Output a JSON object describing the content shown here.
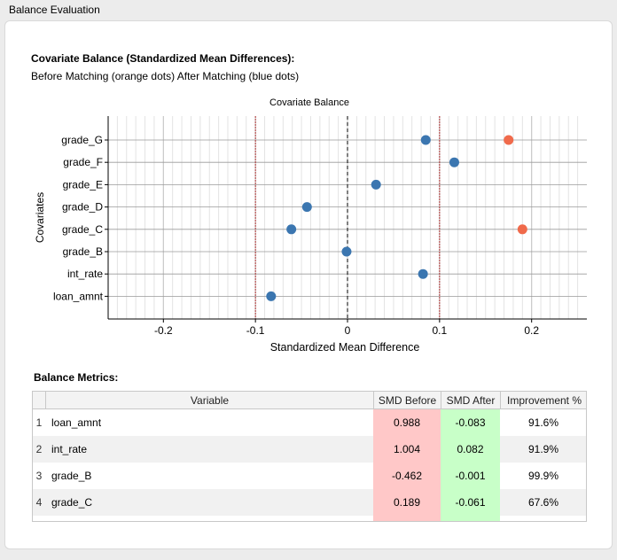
{
  "window": {
    "title": "Balance Evaluation"
  },
  "heading": "Covariate Balance (Standardized Mean Differences):",
  "subheading": "Before Matching (orange dots) After Matching (blue dots)",
  "chart_data": {
    "type": "scatter",
    "title": "Covariate Balance",
    "xlabel": "Standardized Mean Difference",
    "ylabel": "Covariates",
    "categories": [
      "grade_G",
      "grade_F",
      "grade_E",
      "grade_D",
      "grade_C",
      "grade_B",
      "int_rate",
      "loan_amnt"
    ],
    "xlim": [
      -0.26,
      0.26
    ],
    "xticks": [
      -0.2,
      -0.1,
      0,
      0.1,
      0.2
    ],
    "xtick_labels": [
      "-0.2",
      "-0.1",
      "0",
      "0.1",
      "0.2"
    ],
    "reference_lines": {
      "zero": 0,
      "thresholds": [
        -0.1,
        0.1
      ]
    },
    "grid": true,
    "series": [
      {
        "color": "#f06a4b",
        "points": [
          {
            "y": "grade_G",
            "x": 0.175
          },
          {
            "y": "grade_C",
            "x": 0.19
          }
        ]
      },
      {
        "color": "#3b76b0",
        "points": [
          {
            "y": "grade_G",
            "x": 0.085
          },
          {
            "y": "grade_F",
            "x": 0.116
          },
          {
            "y": "grade_E",
            "x": 0.031
          },
          {
            "y": "grade_D",
            "x": -0.044
          },
          {
            "y": "grade_C",
            "x": -0.061
          },
          {
            "y": "grade_B",
            "x": -0.001
          },
          {
            "y": "int_rate",
            "x": 0.082
          },
          {
            "y": "loan_amnt",
            "x": -0.083
          }
        ]
      }
    ]
  },
  "metrics": {
    "label": "Balance Metrics:",
    "columns": [
      "Variable",
      "SMD Before",
      "SMD After",
      "Improvement %"
    ],
    "rows": [
      {
        "n": "1",
        "variable": "loan_amnt",
        "before": "0.988",
        "after": "-0.083",
        "improvement": "91.6%"
      },
      {
        "n": "2",
        "variable": "int_rate",
        "before": "1.004",
        "after": "0.082",
        "improvement": "91.9%"
      },
      {
        "n": "3",
        "variable": "grade_B",
        "before": "-0.462",
        "after": "-0.001",
        "improvement": "99.9%"
      },
      {
        "n": "4",
        "variable": "grade_C",
        "before": "0.189",
        "after": "-0.061",
        "improvement": "67.6%"
      }
    ]
  },
  "colors": {
    "before_cell": "#ffc8c8",
    "after_cell": "#c8ffc8",
    "threshold_line": "#b03030"
  }
}
